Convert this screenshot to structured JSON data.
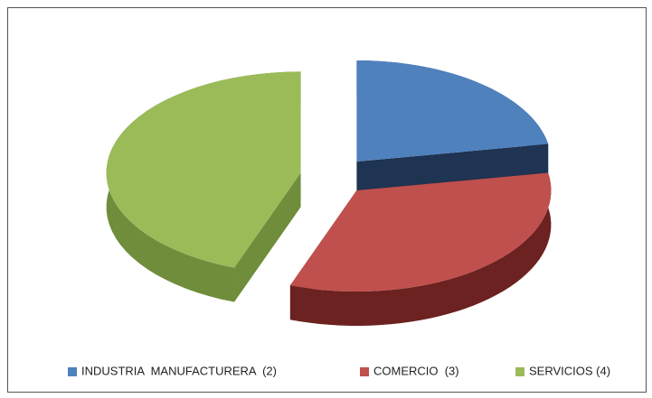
{
  "chart_data": {
    "type": "pie",
    "categories": [
      "INDUSTRIA  MANUFACTURERA  (2)",
      "COMERCIO  (3)",
      "SERVICIOS (4)"
    ],
    "values": [
      2,
      3,
      4
    ],
    "colors": [
      "#4f81bd",
      "#c0504d",
      "#9bbb59"
    ],
    "side_colors": [
      "#1f3352",
      "#6b2220",
      "#6f8d3a"
    ],
    "legend": "bottom"
  }
}
